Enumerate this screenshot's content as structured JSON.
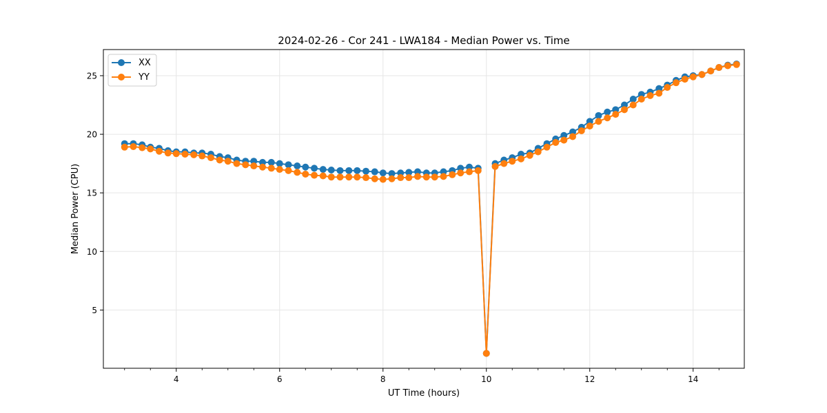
{
  "chart_data": {
    "type": "line",
    "title": "2024-02-26 - Cor 241 - LWA184 - Median Power vs. Time",
    "xlabel": "UT Time (hours)",
    "ylabel": "Median Power (CPU)",
    "xlim": [
      2.59,
      14.99
    ],
    "ylim": [
      0.03,
      27.23
    ],
    "xticks": [
      4,
      6,
      8,
      10,
      12,
      14
    ],
    "yticks": [
      5,
      10,
      15,
      20,
      25
    ],
    "grid": true,
    "legend": {
      "position": "top-left"
    },
    "series": [
      {
        "name": "XX",
        "color": "#1f77b4",
        "x": [
          3.0,
          3.17,
          3.34,
          3.5,
          3.67,
          3.84,
          4.0,
          4.17,
          4.34,
          4.5,
          4.67,
          4.84,
          5.0,
          5.17,
          5.34,
          5.5,
          5.67,
          5.84,
          6.0,
          6.17,
          6.34,
          6.5,
          6.67,
          6.84,
          7.0,
          7.17,
          7.34,
          7.5,
          7.67,
          7.84,
          8.0,
          8.17,
          8.34,
          8.5,
          8.67,
          8.84,
          9.0,
          9.17,
          9.34,
          9.5,
          9.67,
          9.84,
          10.0,
          10.17,
          10.34,
          10.5,
          10.67,
          10.84,
          11.0,
          11.17,
          11.34,
          11.5,
          11.67,
          11.84,
          12.0,
          12.17,
          12.34,
          12.5,
          12.67,
          12.84,
          13.0,
          13.17,
          13.34,
          13.5,
          13.67,
          13.84,
          14.0,
          14.17,
          14.34,
          14.5,
          14.67,
          14.84
        ],
        "y": [
          19.2,
          19.2,
          19.1,
          18.9,
          18.8,
          18.6,
          18.5,
          18.5,
          18.4,
          18.4,
          18.3,
          18.1,
          18.0,
          17.8,
          17.7,
          17.7,
          17.6,
          17.6,
          17.5,
          17.4,
          17.3,
          17.2,
          17.1,
          17.0,
          16.95,
          16.9,
          16.9,
          16.9,
          16.85,
          16.8,
          16.7,
          16.65,
          16.7,
          16.75,
          16.8,
          16.7,
          16.7,
          16.8,
          16.9,
          17.1,
          17.2,
          17.1,
          1.3,
          17.5,
          17.8,
          18.0,
          18.3,
          18.4,
          18.8,
          19.2,
          19.6,
          19.9,
          20.2,
          20.6,
          21.1,
          21.6,
          21.9,
          22.1,
          22.5,
          23.0,
          23.4,
          23.6,
          23.9,
          24.2,
          24.6,
          24.9,
          25.0,
          25.1,
          25.4,
          25.7,
          25.9,
          26.0
        ]
      },
      {
        "name": "YY",
        "color": "#ff7f0e",
        "x": [
          3.0,
          3.17,
          3.34,
          3.5,
          3.67,
          3.84,
          4.0,
          4.17,
          4.34,
          4.5,
          4.67,
          4.84,
          5.0,
          5.17,
          5.34,
          5.5,
          5.67,
          5.84,
          6.0,
          6.17,
          6.34,
          6.5,
          6.67,
          6.84,
          7.0,
          7.17,
          7.34,
          7.5,
          7.67,
          7.84,
          8.0,
          8.17,
          8.34,
          8.5,
          8.67,
          8.84,
          9.0,
          9.17,
          9.34,
          9.5,
          9.67,
          9.84,
          10.0,
          10.17,
          10.34,
          10.5,
          10.67,
          10.84,
          11.0,
          11.17,
          11.34,
          11.5,
          11.67,
          11.84,
          12.0,
          12.17,
          12.34,
          12.5,
          12.67,
          12.84,
          13.0,
          13.17,
          13.34,
          13.5,
          13.67,
          13.84,
          14.0,
          14.17,
          14.34,
          14.5,
          14.67,
          14.84
        ],
        "y": [
          18.9,
          18.95,
          18.85,
          18.75,
          18.55,
          18.4,
          18.35,
          18.3,
          18.25,
          18.15,
          18.0,
          17.8,
          17.7,
          17.5,
          17.4,
          17.3,
          17.2,
          17.1,
          17.0,
          16.9,
          16.75,
          16.6,
          16.5,
          16.45,
          16.35,
          16.35,
          16.35,
          16.35,
          16.3,
          16.2,
          16.15,
          16.2,
          16.3,
          16.3,
          16.4,
          16.35,
          16.35,
          16.4,
          16.55,
          16.7,
          16.8,
          16.9,
          1.3,
          17.25,
          17.5,
          17.7,
          17.9,
          18.2,
          18.5,
          18.9,
          19.3,
          19.5,
          19.8,
          20.3,
          20.7,
          21.1,
          21.4,
          21.7,
          22.1,
          22.5,
          23.0,
          23.3,
          23.5,
          24.0,
          24.4,
          24.7,
          24.9,
          25.1,
          25.4,
          25.7,
          25.85,
          25.95
        ]
      }
    ]
  }
}
